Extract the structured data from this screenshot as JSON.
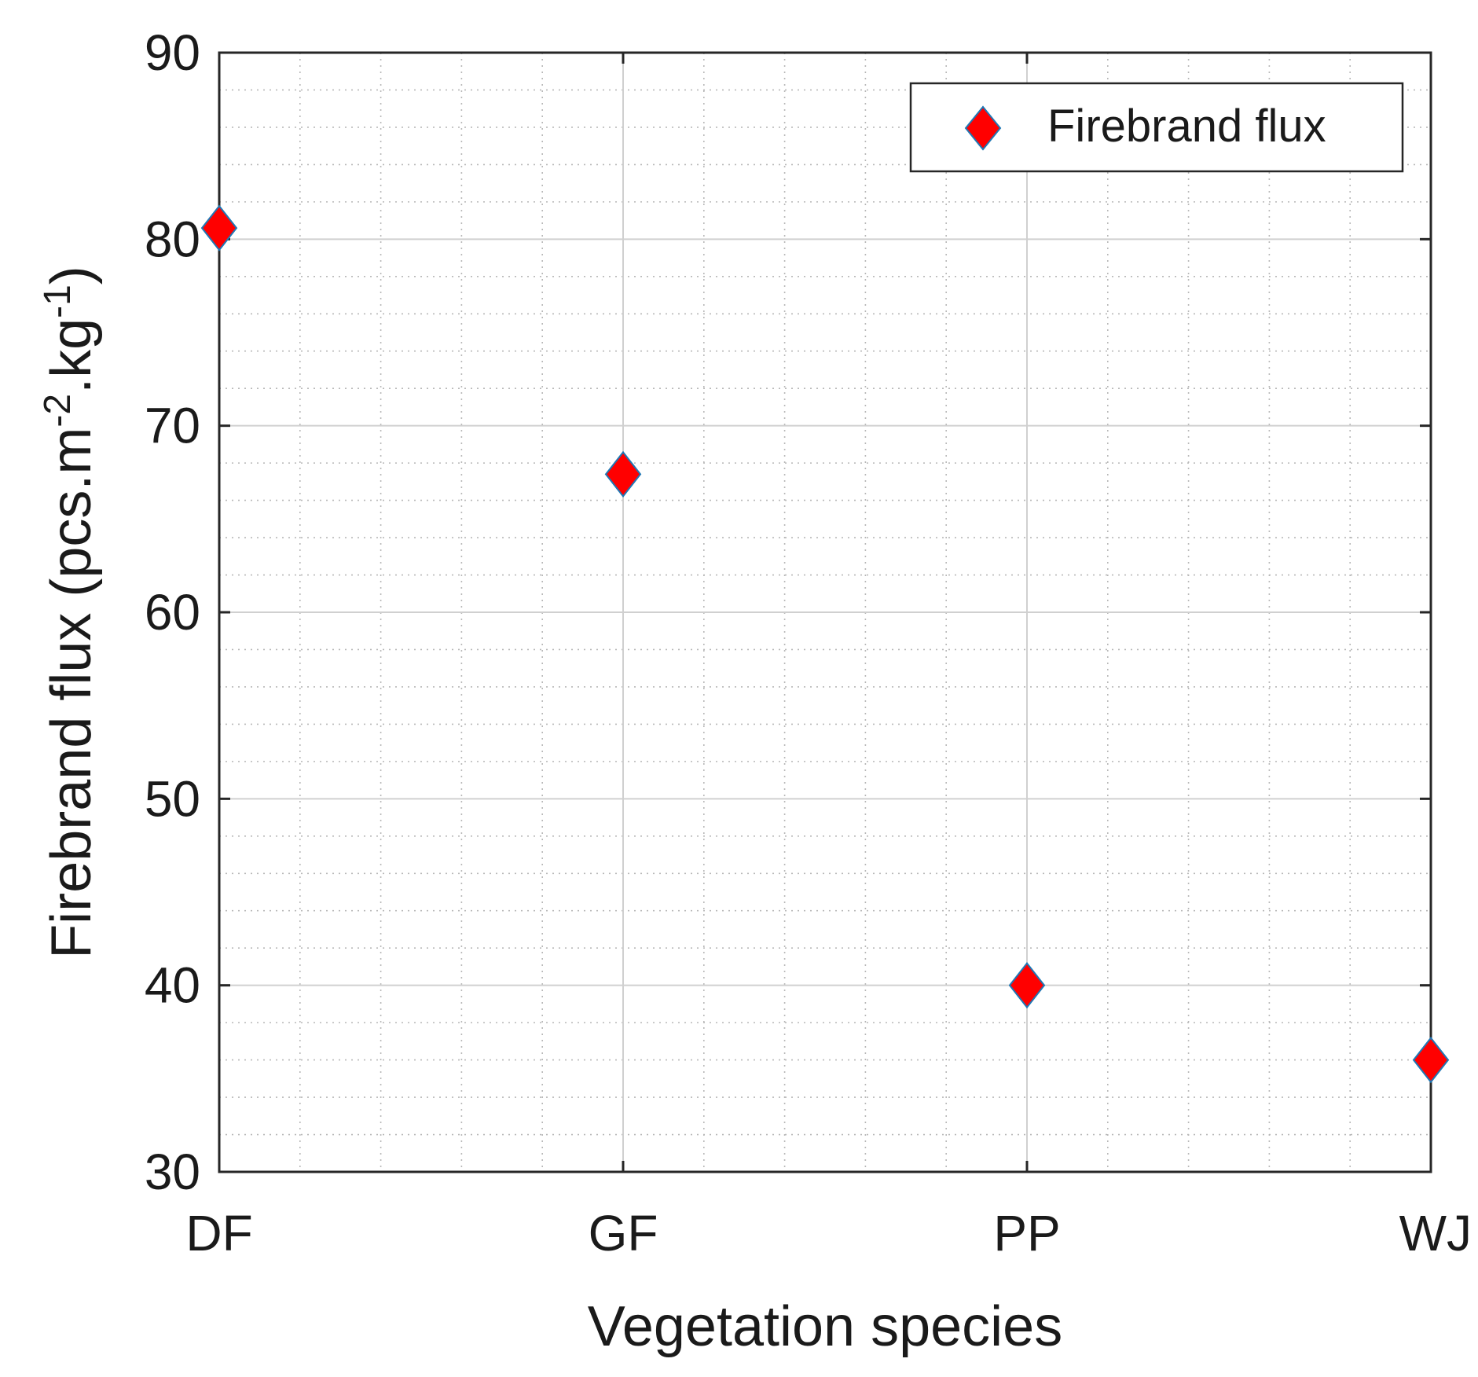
{
  "chart_data": {
    "type": "scatter",
    "title": "",
    "xlabel": "Vegetation species",
    "ylabel": {
      "base": "Firebrand flux (pcs.m",
      "sup1": "-2",
      "mid": ".kg",
      "sup2": "-1",
      "end": ")"
    },
    "categories": [
      "DF",
      "GF",
      "PP",
      "WJ"
    ],
    "series": [
      {
        "name": "Firebrand flux",
        "values": [
          80.6,
          67.4,
          40.0,
          36.0
        ]
      }
    ],
    "ylim": [
      30,
      90
    ],
    "yticks": [
      "30",
      "40",
      "50",
      "60",
      "70",
      "80",
      "90"
    ],
    "grid": true,
    "minor_grid": true,
    "legend": {
      "position": "top-right",
      "entries": [
        "Firebrand flux"
      ]
    },
    "marker": {
      "shape": "diamond",
      "fill": "#ff0000",
      "edge": "#1f77b4"
    }
  }
}
